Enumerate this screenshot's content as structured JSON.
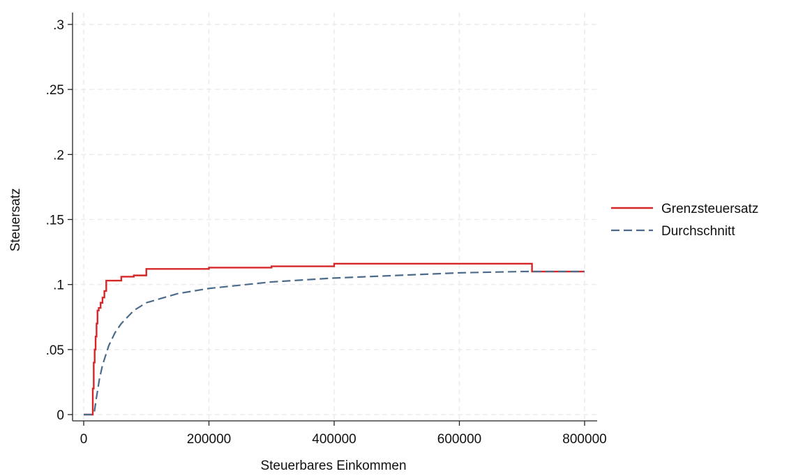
{
  "chart_data": {
    "type": "line",
    "title": "",
    "xlabel": "Steuerbares Einkommen",
    "ylabel": "Steuersatz",
    "xlim": [
      0,
      800000
    ],
    "ylim": [
      0,
      0.3
    ],
    "x_ticks": [
      0,
      200000,
      400000,
      600000,
      800000
    ],
    "x_tick_labels": [
      "0",
      "200000",
      "400000",
      "600000",
      "800000"
    ],
    "y_ticks": [
      0,
      0.05,
      0.1,
      0.15,
      0.2,
      0.25,
      0.3
    ],
    "y_tick_labels": [
      "0",
      ".05",
      ".1",
      ".15",
      ".2",
      ".25",
      ".3"
    ],
    "grid": true,
    "legend_position": "right",
    "series": [
      {
        "name": "Grenzsteuersatz",
        "style": "solid",
        "color": "#d62728",
        "step": true,
        "x": [
          0,
          14500,
          16000,
          17500,
          19000,
          20500,
          22000,
          24000,
          27000,
          30000,
          33000,
          36000,
          40000,
          60000,
          80000,
          100000,
          200000,
          300000,
          400000,
          500000,
          716000,
          800000
        ],
        "y": [
          0,
          0.02,
          0.04,
          0.05,
          0.06,
          0.07,
          0.08,
          0.082,
          0.086,
          0.09,
          0.095,
          0.103,
          0.103,
          0.106,
          0.107,
          0.112,
          0.113,
          0.114,
          0.116,
          0.116,
          0.11,
          0.11
        ]
      },
      {
        "name": "Durchschnitt",
        "style": "dashed",
        "color": "#4c6b8a",
        "step": false,
        "x": [
          0,
          14500,
          17000,
          20000,
          25000,
          30000,
          40000,
          50000,
          60000,
          80000,
          100000,
          150000,
          200000,
          300000,
          400000,
          500000,
          600000,
          700000,
          800000
        ],
        "y": [
          0,
          0,
          0.002,
          0.012,
          0.027,
          0.038,
          0.053,
          0.063,
          0.07,
          0.08,
          0.086,
          0.093,
          0.097,
          0.102,
          0.105,
          0.107,
          0.109,
          0.11,
          0.11
        ]
      }
    ]
  }
}
